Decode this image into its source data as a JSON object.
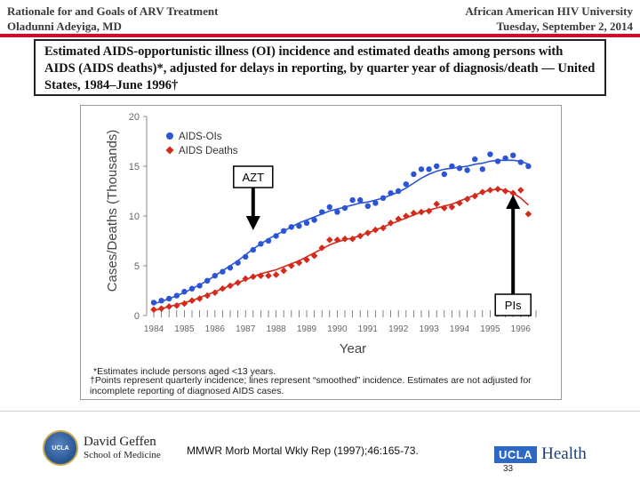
{
  "header": {
    "left_line1": "Rationale for and Goals of ARV Treatment",
    "left_line2": "Oladunni Adeyiga, MD",
    "right_line1": "African American HIV University",
    "right_line2": "Tuesday, September 2, 2014"
  },
  "slide_title": "Estimated AIDS-opportunistic illness (OI) incidence and estimated deaths among persons with AIDS (AIDS deaths)*, adjusted for delays in reporting, by quarter year of diagnosis/death — United States, 1984–June 1996†",
  "chart_data": {
    "type": "scatter",
    "ylabel": "Cases/Deaths (Thousands)",
    "xlabel": "Year",
    "ylim": [
      0,
      20
    ],
    "yticks": [
      "0",
      "5",
      "10",
      "15",
      "20"
    ],
    "x_tick_labels": [
      "1984",
      "1985",
      "1986",
      "1987",
      "1988",
      "1989",
      "1990",
      "1991",
      "1992",
      "1993",
      "1994",
      "1995",
      "1996"
    ],
    "grid": false,
    "legend_position": "top-left",
    "series": [
      {
        "name": "AIDS-OIs",
        "color": "#2b55d6",
        "marker": "circle",
        "x": [
          1984.0,
          1984.25,
          1984.5,
          1984.75,
          1985.0,
          1985.25,
          1985.5,
          1985.75,
          1986.0,
          1986.25,
          1986.5,
          1986.75,
          1987.0,
          1987.25,
          1987.5,
          1987.75,
          1988.0,
          1988.25,
          1988.5,
          1988.75,
          1989.0,
          1989.25,
          1989.5,
          1989.75,
          1990.0,
          1990.25,
          1990.5,
          1990.75,
          1991.0,
          1991.25,
          1991.5,
          1991.75,
          1992.0,
          1992.25,
          1992.5,
          1992.75,
          1993.0,
          1993.25,
          1993.5,
          1993.75,
          1994.0,
          1994.25,
          1994.5,
          1994.75,
          1995.0,
          1995.25,
          1995.5,
          1995.75,
          1996.0,
          1996.25
        ],
        "y": [
          1.3,
          1.5,
          1.7,
          2.0,
          2.4,
          2.7,
          3.0,
          3.5,
          4.0,
          4.4,
          4.8,
          5.3,
          5.9,
          6.6,
          7.2,
          7.5,
          8.0,
          8.5,
          8.9,
          9.0,
          9.3,
          9.6,
          10.4,
          10.9,
          10.4,
          10.8,
          11.6,
          11.6,
          11.0,
          11.3,
          11.8,
          12.3,
          12.5,
          13.2,
          14.2,
          14.7,
          14.7,
          15.0,
          14.2,
          15.0,
          14.8,
          14.6,
          15.7,
          14.7,
          16.2,
          15.5,
          15.8,
          16.1,
          15.4,
          15.0
        ],
        "trend": [
          1.2,
          1.4,
          1.7,
          2.0,
          2.3,
          2.7,
          3.1,
          3.5,
          4.0,
          4.5,
          5.0,
          5.5,
          6.1,
          6.7,
          7.2,
          7.7,
          8.1,
          8.5,
          8.9,
          9.3,
          9.6,
          9.9,
          10.2,
          10.5,
          10.7,
          10.9,
          11.1,
          11.3,
          11.4,
          11.6,
          11.8,
          12.1,
          12.4,
          12.8,
          13.3,
          13.8,
          14.2,
          14.5,
          14.7,
          14.8,
          14.9,
          15.0,
          15.2,
          15.3,
          15.5,
          15.6,
          15.6,
          15.6,
          15.5,
          15.2
        ]
      },
      {
        "name": "AIDS Deaths",
        "color": "#d42a1c",
        "marker": "diamond",
        "x": [
          1984.0,
          1984.25,
          1984.5,
          1984.75,
          1985.0,
          1985.25,
          1985.5,
          1985.75,
          1986.0,
          1986.25,
          1986.5,
          1986.75,
          1987.0,
          1987.25,
          1987.5,
          1987.75,
          1988.0,
          1988.25,
          1988.5,
          1988.75,
          1989.0,
          1989.25,
          1989.5,
          1989.75,
          1990.0,
          1990.25,
          1990.5,
          1990.75,
          1991.0,
          1991.25,
          1991.5,
          1991.75,
          1992.0,
          1992.25,
          1992.5,
          1992.75,
          1993.0,
          1993.25,
          1993.5,
          1993.75,
          1994.0,
          1994.25,
          1994.5,
          1994.75,
          1995.0,
          1995.25,
          1995.5,
          1995.75,
          1996.0,
          1996.25
        ],
        "y": [
          0.6,
          0.7,
          0.9,
          1.0,
          1.2,
          1.5,
          1.7,
          2.0,
          2.3,
          2.7,
          3.0,
          3.3,
          3.7,
          3.9,
          4.0,
          4.0,
          4.1,
          4.5,
          5.0,
          5.3,
          5.6,
          6.0,
          6.8,
          7.6,
          7.6,
          7.7,
          7.7,
          8.0,
          8.3,
          8.6,
          8.8,
          9.3,
          9.7,
          10.0,
          10.3,
          10.4,
          10.5,
          11.2,
          10.8,
          10.9,
          11.3,
          11.7,
          12.0,
          12.4,
          12.6,
          12.7,
          12.5,
          12.3,
          12.6,
          10.2
        ],
        "trend": [
          0.5,
          0.7,
          0.9,
          1.1,
          1.3,
          1.5,
          1.8,
          2.1,
          2.4,
          2.7,
          3.0,
          3.3,
          3.6,
          3.9,
          4.2,
          4.4,
          4.6,
          4.9,
          5.2,
          5.5,
          5.9,
          6.3,
          6.7,
          7.1,
          7.4,
          7.6,
          7.8,
          8.0,
          8.3,
          8.6,
          8.9,
          9.2,
          9.5,
          9.8,
          10.1,
          10.4,
          10.6,
          10.8,
          11.0,
          11.2,
          11.5,
          11.8,
          12.1,
          12.4,
          12.6,
          12.7,
          12.6,
          12.3,
          11.8,
          11.1
        ]
      }
    ],
    "annotations": [
      {
        "label": "AZT",
        "x": 1987.25,
        "arrow": "down"
      },
      {
        "label": "PIs",
        "x": 1995.75,
        "arrow": "up"
      }
    ],
    "footnotes": [
      "*Estimates include persons aged <13 years.",
      "†Points represent quarterly incidence; lines represent “smoothed” incidence. Estimates are not adjusted for incomplete reporting of diagnosed AIDS cases."
    ]
  },
  "citation": "MMWR Morb Mortal Wkly Rep (1997);46:165-73.",
  "footer": {
    "school_name": "David Geffen",
    "school_sub": "School of Medicine",
    "seal_text": "UCLA",
    "ucla_label": "UCLA",
    "health_label": "Health",
    "page_number": "33"
  }
}
